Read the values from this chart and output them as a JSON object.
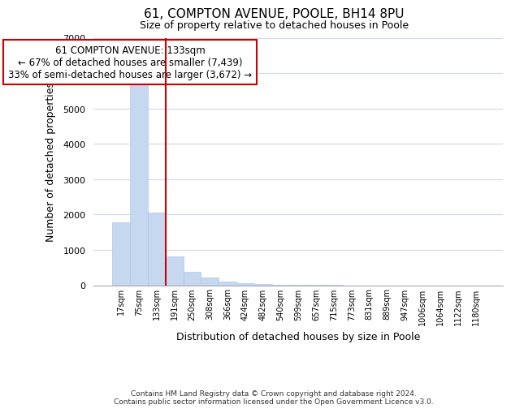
{
  "title_line1": "61, COMPTON AVENUE, POOLE, BH14 8PU",
  "title_line2": "Size of property relative to detached houses in Poole",
  "xlabel": "Distribution of detached houses by size in Poole",
  "ylabel": "Number of detached properties",
  "bar_labels": [
    "17sqm",
    "75sqm",
    "133sqm",
    "191sqm",
    "250sqm",
    "308sqm",
    "366sqm",
    "424sqm",
    "482sqm",
    "540sqm",
    "599sqm",
    "657sqm",
    "715sqm",
    "773sqm",
    "831sqm",
    "889sqm",
    "947sqm",
    "1006sqm",
    "1064sqm",
    "1122sqm",
    "1180sqm"
  ],
  "bar_values": [
    1780,
    5740,
    2060,
    820,
    370,
    225,
    100,
    60,
    30,
    15,
    8,
    3,
    1,
    0,
    0,
    0,
    0,
    0,
    0,
    0,
    0
  ],
  "bar_color": "#c5d8f0",
  "vline_x": 2,
  "vline_color": "#cc0000",
  "annotation_title": "61 COMPTON AVENUE: 133sqm",
  "annotation_line1": "← 67% of detached houses are smaller (7,439)",
  "annotation_line2": "33% of semi-detached houses are larger (3,672) →",
  "annotation_box_color": "#ffffff",
  "annotation_box_edgecolor": "#cc0000",
  "ylim": [
    0,
    7000
  ],
  "yticks": [
    0,
    1000,
    2000,
    3000,
    4000,
    5000,
    6000,
    7000
  ],
  "footer_line1": "Contains HM Land Registry data © Crown copyright and database right 2024.",
  "footer_line2": "Contains public sector information licensed under the Open Government Licence v3.0.",
  "background_color": "#ffffff",
  "plot_bg_color": "#ffffff",
  "grid_color": "#d0d8e8"
}
